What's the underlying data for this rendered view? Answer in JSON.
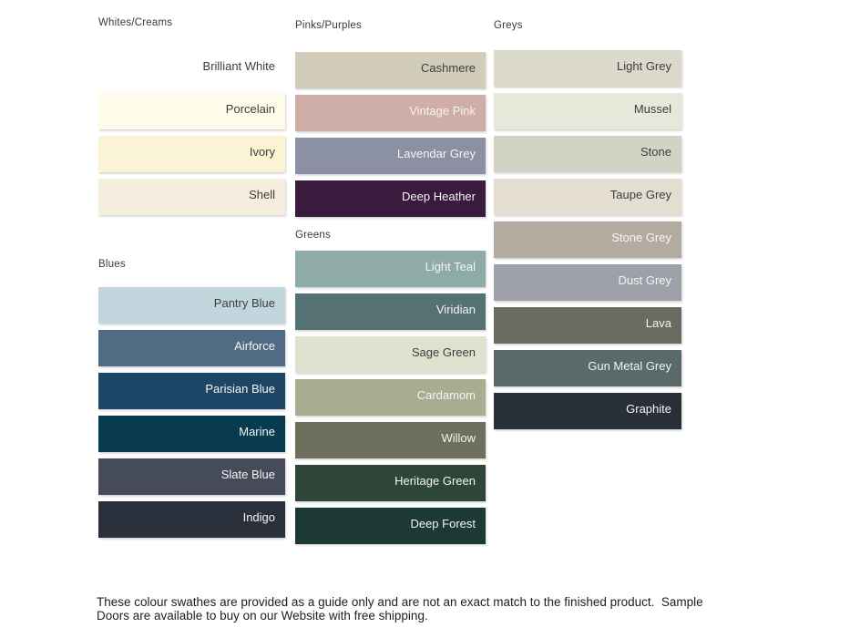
{
  "columns": [
    {
      "sections": [
        {
          "header": "Whites/Creams",
          "swatches": [
            {
              "name": "Brilliant White",
              "color": "#FFFFFF",
              "text_color": "#3D3D3D"
            },
            {
              "name": "Porcelain",
              "color": "#FEFCE9",
              "text_color": "#3D3D3D"
            },
            {
              "name": "Ivory",
              "color": "#FAF4D4",
              "text_color": "#3D3D3D"
            },
            {
              "name": "Shell",
              "color": "#F6EEDF",
              "text_color": "#3D3D3D"
            }
          ]
        },
        {
          "header": "Blues",
          "swatches": [
            {
              "name": "Pantry Blue",
              "color": "#C2D7DD",
              "text_color": "#3D3D3D"
            },
            {
              "name": "Airforce",
              "color": "#4F6C84",
              "text_color": "#F5F5F3"
            },
            {
              "name": "Parisian Blue",
              "color": "#1D4566",
              "text_color": "#F5F5F3"
            },
            {
              "name": "Marine",
              "color": "#083B50",
              "text_color": "#F5F5F3"
            },
            {
              "name": "Slate Blue",
              "color": "#454B59",
              "text_color": "#F5F5F3"
            },
            {
              "name": "Indigo",
              "color": "#2A313D",
              "text_color": "#F5F5F3"
            }
          ]
        }
      ]
    },
    {
      "sections": [
        {
          "header": "Pinks/Purples",
          "swatches": [
            {
              "name": "Cashmere",
              "color": "#D2CCBB",
              "text_color": "#3D3D3D"
            },
            {
              "name": "Vintage Pink",
              "color": "#D0AEA8",
              "text_color": "#F7F3F0"
            },
            {
              "name": "Lavendar Grey",
              "color": "#8B90A3",
              "text_color": "#F5F5F3"
            },
            {
              "name": "Deep Heather",
              "color": "#3A1B3E",
              "text_color": "#F5F5F3"
            }
          ]
        },
        {
          "header": "Greens",
          "swatches": [
            {
              "name": "Light Teal",
              "color": "#8FABA8",
              "text_color": "#F5F5F3"
            },
            {
              "name": "Viridian",
              "color": "#567173",
              "text_color": "#F5F5F3"
            },
            {
              "name": "Sage Green",
              "color": "#DFE2CF",
              "text_color": "#3D3D3D"
            },
            {
              "name": "Cardamom",
              "color": "#A9AC91",
              "text_color": "#F5F5F3"
            },
            {
              "name": "Willow",
              "color": "#6F6F5D",
              "text_color": "#F5F5F3"
            },
            {
              "name": "Heritage Green",
              "color": "#2E4638",
              "text_color": "#F5F5F3"
            },
            {
              "name": "Deep Forest",
              "color": "#1C3933",
              "text_color": "#F5F5F3"
            }
          ]
        }
      ]
    },
    {
      "sections": [
        {
          "header": "Greys",
          "swatches": [
            {
              "name": "Light Grey",
              "color": "#DAD9CB",
              "text_color": "#3D3D3D"
            },
            {
              "name": "Mussel",
              "color": "#E7E8D9",
              "text_color": "#3D3D3D"
            },
            {
              "name": "Stone",
              "color": "#D2D3C4",
              "text_color": "#3D3D3D"
            },
            {
              "name": "Taupe Grey",
              "color": "#E3DED1",
              "text_color": "#3D3D3D"
            },
            {
              "name": "Stone Grey",
              "color": "#B3ABA0",
              "text_color": "#F7F6F4"
            },
            {
              "name": "Dust Grey",
              "color": "#9EA1AA",
              "text_color": "#F5F5F3"
            },
            {
              "name": "Lava",
              "color": "#6B6B62",
              "text_color": "#F5F5F3"
            },
            {
              "name": "Gun Metal Grey",
              "color": "#596A68",
              "text_color": "#F5F5F3"
            },
            {
              "name": "Graphite",
              "color": "#282F37",
              "text_color": "#F5F5F3"
            }
          ]
        }
      ]
    }
  ],
  "footer": {
    "lines": [
      "These colour swathes are provided as a guide only and are not an exact match to the finished product.  Sample",
      "Doors are available to buy on our Website with free shipping."
    ]
  }
}
